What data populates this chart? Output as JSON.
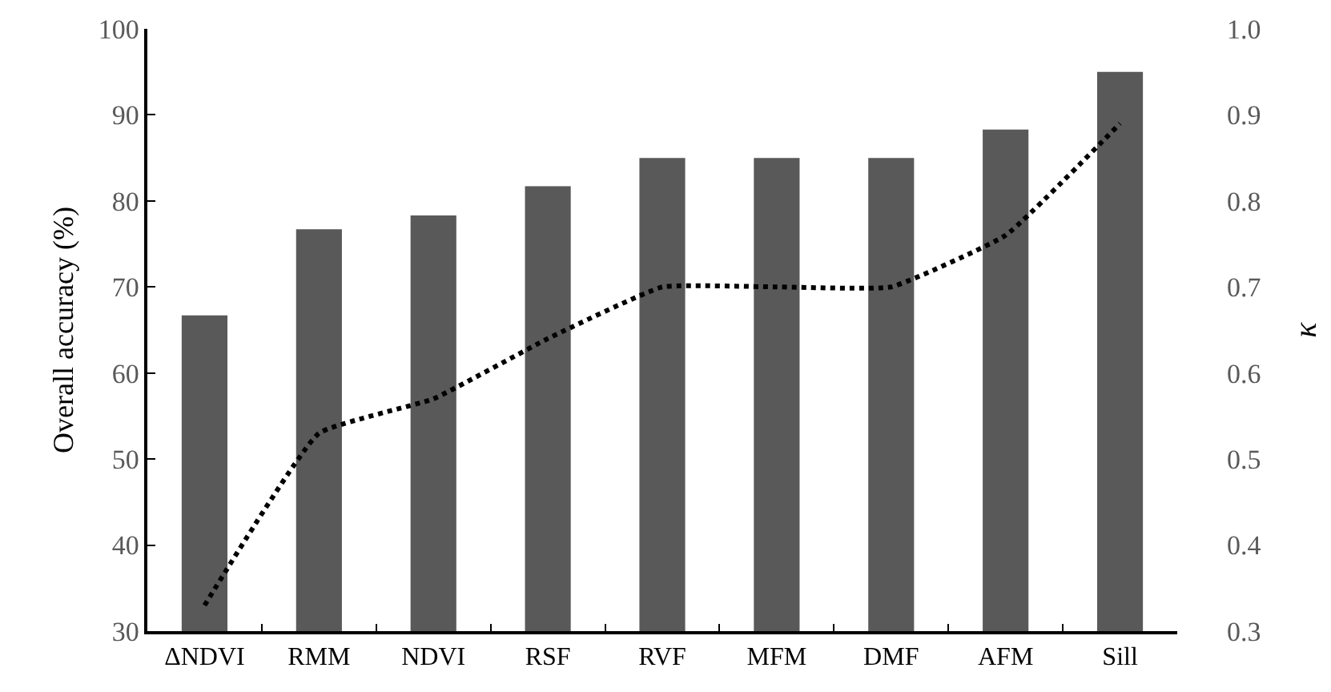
{
  "chart_data": {
    "type": "bar",
    "ylabel": "Overall accuracy (%)",
    "y2label": "κ",
    "categories": [
      "ΔNDVI",
      "RMM",
      "NDVI",
      "RSF",
      "RVF",
      "MFM",
      "DMF",
      "AFM",
      "Sill"
    ],
    "series": [
      {
        "color": "#595959",
        "values": [
          66.7,
          76.7,
          78.3,
          81.7,
          85.0,
          85.0,
          85.0,
          88.3,
          95.0
        ]
      },
      {
        "type": "line",
        "axis": "y2",
        "color": "#000000",
        "line_style": "dotted",
        "marker": "none",
        "values": [
          0.33,
          0.53,
          0.57,
          0.64,
          0.7,
          0.7,
          0.7,
          0.76,
          0.89
        ]
      }
    ],
    "ylim": [
      30,
      100
    ],
    "yticks": [
      30,
      40,
      50,
      60,
      70,
      80,
      90,
      100
    ],
    "y2lim": [
      0.3,
      1.0
    ],
    "y2ticks": [
      {
        "value": 0.3,
        "label": "0.3"
      },
      {
        "value": 0.4,
        "label": "0.4"
      },
      {
        "value": 0.5,
        "label": "0.5"
      },
      {
        "value": 0.6,
        "label": "0.6"
      },
      {
        "value": 0.7,
        "label": "0.7"
      },
      {
        "value": 0.8,
        "label": "0.8"
      },
      {
        "value": 0.9,
        "label": "0.9"
      },
      {
        "value": 1.0,
        "label": "1.0"
      }
    ],
    "grid": false,
    "legend": false
  }
}
